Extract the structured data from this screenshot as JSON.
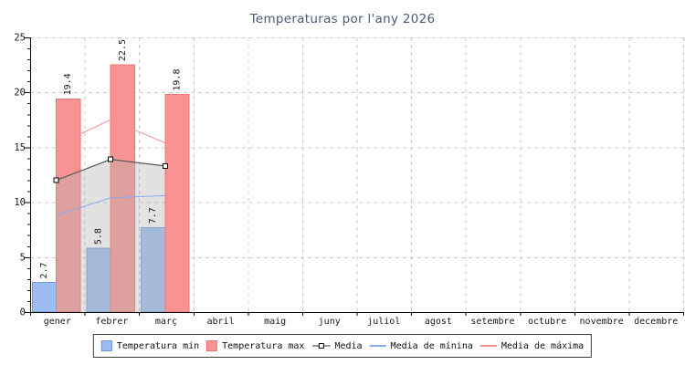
{
  "window": {
    "background": "#ffffff"
  },
  "chart_data": {
    "type": "bar",
    "title": "Temperaturas por l'any 2026",
    "title_color": "#4b5878",
    "categories": [
      "gener",
      "febrer",
      "març",
      "abril",
      "maig",
      "juny",
      "juliol",
      "agost",
      "setembre",
      "octubre",
      "novembre",
      "decembre"
    ],
    "ylim": [
      0,
      25
    ],
    "y_major_step": 5,
    "y_minor_step": 1,
    "y_tick_labels": [
      "0",
      "5",
      "10",
      "15",
      "20",
      "25"
    ],
    "grid": "dashed",
    "grid_color": "#cbcbcb",
    "axis_color": "#000000",
    "tick_label_color": "#1a1a1a",
    "bar_label_color": "#1a1a1a",
    "legend_position": "bottom",
    "series": [
      {
        "name": "Temperatura min",
        "type": "bar",
        "slot": 0,
        "color": "#9dbdf0",
        "border_color": "#7096dc",
        "values": [
          2.7,
          5.8,
          7.7
        ],
        "value_labels": [
          "2.7",
          "5.8",
          "7.7"
        ],
        "legend_swatch": "rect"
      },
      {
        "name": "Temperatura max",
        "type": "bar",
        "slot": 1,
        "color": "#f99393",
        "border_color": "#ea7575",
        "values": [
          19.4,
          22.5,
          19.8
        ],
        "value_labels": [
          "19.4",
          "22.5",
          "19.8"
        ],
        "legend_swatch": "rect"
      },
      {
        "name": "Media",
        "type": "line",
        "marker": "square",
        "color": "#5a5a5a",
        "marker_fill": "#ffffff",
        "marker_stroke": "#000000",
        "area_fill": "rgba(180,180,180,0.38)",
        "values": [
          12.0,
          13.9,
          13.3
        ],
        "legend_swatch": "line-marker"
      },
      {
        "name": "Media de mínina",
        "type": "line",
        "color": "#8ca8ee",
        "values": [
          8.8,
          10.4,
          10.6
        ],
        "legend_swatch": "line"
      },
      {
        "name": "Media de máxima",
        "type": "line",
        "color": "#f68e8e",
        "values": [
          15.2,
          17.5,
          15.4
        ],
        "legend_swatch": "line"
      }
    ]
  }
}
